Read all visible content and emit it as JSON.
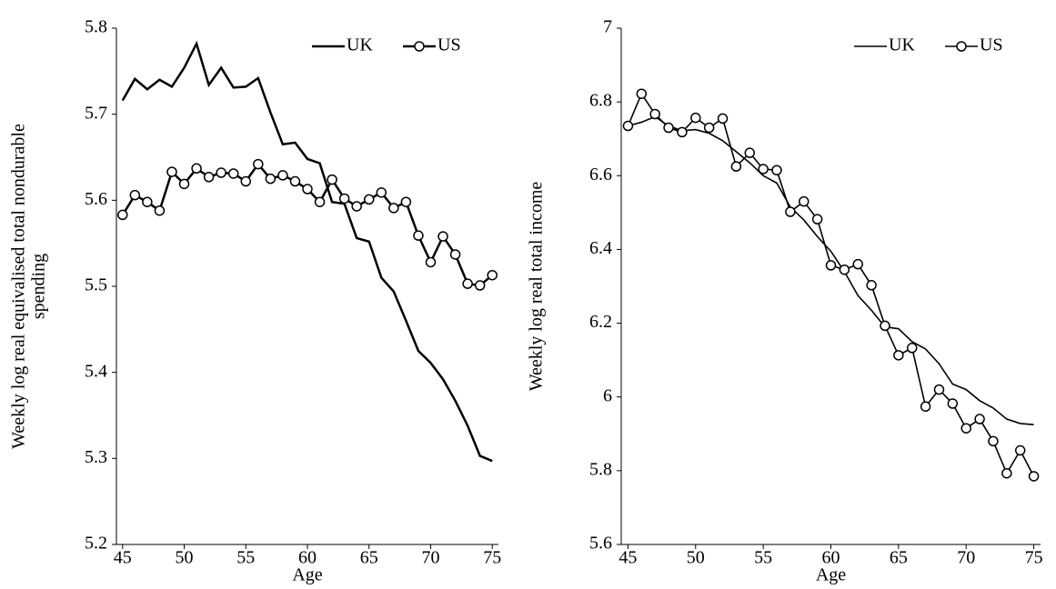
{
  "chart_data": [
    {
      "type": "line",
      "xlabel": "Age",
      "ylabel": [
        "Weekly log real equivalised total nondurable",
        "spending"
      ],
      "x": [
        45,
        46,
        47,
        48,
        49,
        50,
        51,
        52,
        53,
        54,
        55,
        56,
        57,
        58,
        59,
        60,
        61,
        62,
        63,
        64,
        65,
        66,
        67,
        68,
        69,
        70,
        71,
        72,
        73,
        74,
        75
      ],
      "series": [
        {
          "name": "UK",
          "color": "#000000",
          "values": [
            5.716,
            5.741,
            5.729,
            5.74,
            5.732,
            5.754,
            5.782,
            5.734,
            5.754,
            5.731,
            5.732,
            5.742,
            5.702,
            5.665,
            5.667,
            5.648,
            5.643,
            5.598,
            5.596,
            5.556,
            5.552,
            5.51,
            5.494,
            5.46,
            5.425,
            5.411,
            5.392,
            5.367,
            5.338,
            5.303,
            5.297
          ]
        },
        {
          "name": "US",
          "color": "#000000",
          "marker": "circle",
          "values": [
            5.583,
            5.606,
            5.598,
            5.588,
            5.633,
            5.619,
            5.637,
            5.627,
            5.632,
            5.631,
            5.622,
            5.642,
            5.625,
            5.629,
            5.622,
            5.613,
            5.598,
            5.624,
            5.602,
            5.593,
            5.601,
            5.609,
            5.591,
            5.598,
            5.559,
            5.528,
            5.558,
            5.537,
            5.503,
            5.501,
            5.513
          ]
        }
      ],
      "xlim": [
        44.5,
        75.5
      ],
      "xticks": [
        45,
        50,
        55,
        60,
        65,
        70,
        75
      ],
      "ylim": [
        5.2,
        5.8
      ],
      "yticks": [
        5.2,
        5.3,
        5.4,
        5.5,
        5.6,
        5.7,
        5.8
      ],
      "legend": "top-right"
    },
    {
      "type": "line",
      "xlabel": "Age",
      "ylabel": [
        "Weekly log real  total income"
      ],
      "x": [
        45,
        46,
        47,
        48,
        49,
        50,
        51,
        52,
        53,
        54,
        55,
        56,
        57,
        58,
        59,
        60,
        61,
        62,
        63,
        64,
        65,
        66,
        67,
        68,
        69,
        70,
        71,
        72,
        73,
        74,
        75
      ],
      "series": [
        {
          "name": "UK",
          "color": "#000000",
          "values": [
            6.735,
            6.745,
            6.76,
            6.735,
            6.722,
            6.725,
            6.715,
            6.695,
            6.665,
            6.635,
            6.6,
            6.58,
            6.515,
            6.48,
            6.435,
            6.395,
            6.34,
            6.275,
            6.235,
            6.19,
            6.185,
            6.15,
            6.13,
            6.09,
            6.035,
            6.02,
            5.99,
            5.97,
            5.94,
            5.928,
            5.925
          ]
        },
        {
          "name": "US",
          "color": "#000000",
          "marker": "circle",
          "values": [
            6.735,
            6.822,
            6.767,
            6.73,
            6.718,
            6.757,
            6.73,
            6.755,
            6.625,
            6.662,
            6.618,
            6.615,
            6.502,
            6.53,
            6.482,
            6.357,
            6.345,
            6.36,
            6.303,
            6.193,
            6.113,
            6.133,
            5.974,
            6.02,
            5.982,
            5.915,
            5.94,
            5.88,
            5.793,
            5.855,
            5.785
          ]
        }
      ],
      "xlim": [
        44.5,
        75.5
      ],
      "xticks": [
        45,
        50,
        55,
        60,
        65,
        70,
        75
      ],
      "ylim": [
        5.6,
        7
      ],
      "yticks": [
        5.6,
        5.8,
        6,
        6.2,
        6.4,
        6.6,
        6.8,
        7
      ],
      "legend": "top-right"
    }
  ]
}
